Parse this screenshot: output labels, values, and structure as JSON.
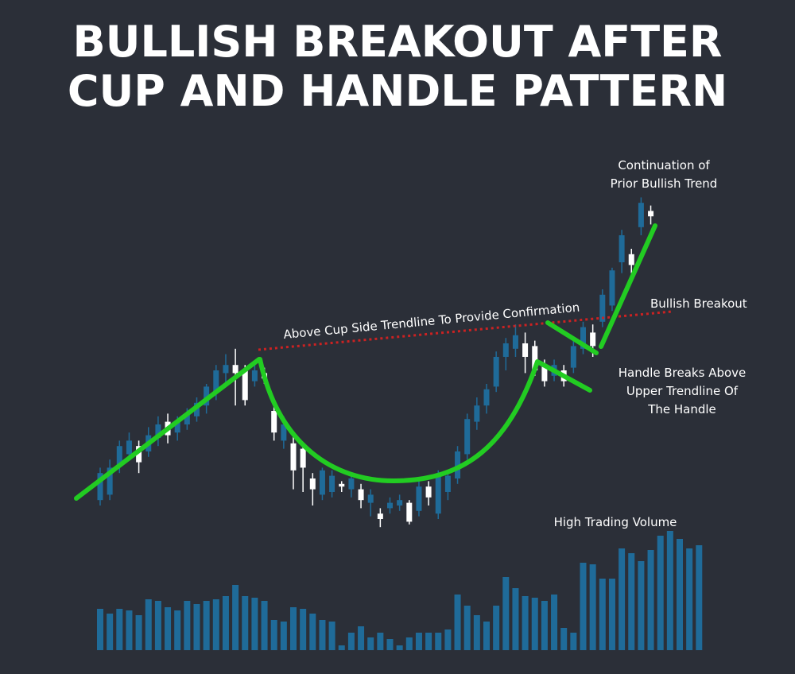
{
  "chart_data": {
    "type": "candlestick",
    "title": "BULLISH BREAKOUT AFTER CUP AND HANDLE PATTERN",
    "title_lines": [
      "BULLISH BREAKOUT AFTER",
      "CUP AND HANDLE PATTERN"
    ],
    "colors": {
      "background": "#2b2f38",
      "bull_candle": "#1f6b99",
      "bear_candle": "#ffffff",
      "volume": "#1f6b99",
      "pattern_line": "#22cc22",
      "breakout_line": "#cc2222",
      "text": "#ffffff"
    },
    "price_range": [
      0,
      100
    ],
    "volume_range": [
      0,
      100
    ],
    "candles": [
      {
        "o": 2,
        "c": 12,
        "h": 14,
        "l": 0,
        "bull": true
      },
      {
        "o": 4,
        "c": 14,
        "h": 17,
        "l": 2,
        "bull": true
      },
      {
        "o": 15,
        "c": 22,
        "h": 24,
        "l": 12,
        "bull": true
      },
      {
        "o": 19,
        "c": 24,
        "h": 27,
        "l": 17,
        "bull": true
      },
      {
        "o": 22,
        "c": 16,
        "h": 24,
        "l": 12,
        "bull": false
      },
      {
        "o": 20,
        "c": 26,
        "h": 29,
        "l": 18,
        "bull": true
      },
      {
        "o": 25,
        "c": 30,
        "h": 33,
        "l": 22,
        "bull": true
      },
      {
        "o": 31,
        "c": 26,
        "h": 34,
        "l": 23,
        "bull": false
      },
      {
        "o": 27,
        "c": 31,
        "h": 33,
        "l": 24,
        "bull": true
      },
      {
        "o": 30,
        "c": 34,
        "h": 36,
        "l": 28,
        "bull": true
      },
      {
        "o": 33,
        "c": 38,
        "h": 40,
        "l": 31,
        "bull": true
      },
      {
        "o": 37,
        "c": 44,
        "h": 45,
        "l": 34,
        "bull": true
      },
      {
        "o": 42,
        "c": 50,
        "h": 52,
        "l": 39,
        "bull": true
      },
      {
        "o": 49,
        "c": 52,
        "h": 56,
        "l": 45,
        "bull": true
      },
      {
        "o": 52,
        "c": 49,
        "h": 58,
        "l": 37,
        "bull": false
      },
      {
        "o": 50,
        "c": 39,
        "h": 52,
        "l": 37,
        "bull": false
      },
      {
        "o": 46,
        "c": 50,
        "h": 52,
        "l": 44,
        "bull": true
      },
      {
        "o": 49,
        "c": 47,
        "h": 51,
        "l": 45,
        "bull": false
      },
      {
        "o": 35,
        "c": 27,
        "h": 38,
        "l": 24,
        "bull": false
      },
      {
        "o": 24,
        "c": 30,
        "h": 33,
        "l": 21,
        "bull": true
      },
      {
        "o": 23,
        "c": 13,
        "h": 26,
        "l": 6,
        "bull": false
      },
      {
        "o": 21,
        "c": 14,
        "h": 22,
        "l": 5,
        "bull": false
      },
      {
        "o": 10,
        "c": 6,
        "h": 12,
        "l": 0,
        "bull": false
      },
      {
        "o": 4,
        "c": 13,
        "h": 14,
        "l": 2,
        "bull": true
      },
      {
        "o": 5,
        "c": 11,
        "h": 13,
        "l": 3,
        "bull": true
      },
      {
        "o": 8,
        "c": 7,
        "h": 9,
        "l": 5,
        "bull": false
      },
      {
        "o": 6,
        "c": 10,
        "h": 11,
        "l": 3,
        "bull": true
      },
      {
        "o": 6,
        "c": 2,
        "h": 8,
        "l": -1,
        "bull": false
      },
      {
        "o": 1,
        "c": 4,
        "h": 6,
        "l": -4,
        "bull": true
      },
      {
        "o": -3,
        "c": -5,
        "h": -1,
        "l": -8,
        "bull": false
      },
      {
        "o": -1,
        "c": 1,
        "h": 3,
        "l": -3,
        "bull": true
      },
      {
        "o": 0,
        "c": 2,
        "h": 4,
        "l": -2,
        "bull": true
      },
      {
        "o": 1,
        "c": -6,
        "h": 2,
        "l": -7,
        "bull": false
      },
      {
        "o": -2,
        "c": 7,
        "h": 10,
        "l": -4,
        "bull": true
      },
      {
        "o": 7,
        "c": 3,
        "h": 9,
        "l": 0,
        "bull": false
      },
      {
        "o": -3,
        "c": 11,
        "h": 13,
        "l": -5,
        "bull": true
      },
      {
        "o": 5,
        "c": 11,
        "h": 13,
        "l": 2,
        "bull": true
      },
      {
        "o": 10,
        "c": 20,
        "h": 22,
        "l": 8,
        "bull": true
      },
      {
        "o": 19,
        "c": 32,
        "h": 34,
        "l": 17,
        "bull": true
      },
      {
        "o": 31,
        "c": 37,
        "h": 40,
        "l": 28,
        "bull": true
      },
      {
        "o": 37,
        "c": 43,
        "h": 45,
        "l": 34,
        "bull": true
      },
      {
        "o": 44,
        "c": 55,
        "h": 57,
        "l": 42,
        "bull": true
      },
      {
        "o": 55,
        "c": 60,
        "h": 62,
        "l": 50,
        "bull": true
      },
      {
        "o": 58,
        "c": 63,
        "h": 67,
        "l": 55,
        "bull": true
      },
      {
        "o": 60,
        "c": 55,
        "h": 64,
        "l": 49,
        "bull": false
      },
      {
        "o": 59,
        "c": 50,
        "h": 61,
        "l": 48,
        "bull": false
      },
      {
        "o": 52,
        "c": 46,
        "h": 54,
        "l": 44,
        "bull": false
      },
      {
        "o": 48,
        "c": 52,
        "h": 54,
        "l": 46,
        "bull": true
      },
      {
        "o": 50,
        "c": 46,
        "h": 52,
        "l": 44,
        "bull": false
      },
      {
        "o": 51,
        "c": 59,
        "h": 62,
        "l": 49,
        "bull": true
      },
      {
        "o": 58,
        "c": 66,
        "h": 68,
        "l": 56,
        "bull": true
      },
      {
        "o": 64,
        "c": 59,
        "h": 67,
        "l": 55,
        "bull": false
      },
      {
        "o": 68,
        "c": 78,
        "h": 80,
        "l": 66,
        "bull": true
      },
      {
        "o": 74,
        "c": 87,
        "h": 88,
        "l": 72,
        "bull": true
      },
      {
        "o": 90,
        "c": 100,
        "h": 102,
        "l": 86,
        "bull": true
      },
      {
        "o": 93,
        "c": 89,
        "h": 95,
        "l": 86,
        "bull": false
      },
      {
        "o": 103,
        "c": 112,
        "h": 114,
        "l": 100,
        "bull": true
      },
      {
        "o": 109,
        "c": 107,
        "h": 111,
        "l": 104,
        "bull": false
      }
    ],
    "volume": [
      20,
      17,
      20,
      19,
      16,
      26,
      25,
      21,
      19,
      25,
      23,
      25,
      26,
      28,
      35,
      28,
      27,
      25,
      13,
      12,
      21,
      20,
      17,
      13,
      12,
      -3,
      5,
      9,
      2,
      5,
      1,
      -3,
      2,
      5,
      5,
      5,
      7,
      29,
      22,
      16,
      12,
      22,
      40,
      33,
      28,
      27,
      25,
      29,
      8,
      5,
      49,
      48,
      39,
      39,
      58,
      55,
      50,
      57,
      66,
      69,
      64,
      58,
      60
    ],
    "annotations": {
      "continuation": [
        "Continuation of",
        "Prior Bullish Trend"
      ],
      "breakout": "Bullish Breakout",
      "confirmation": "Above Cup Side Trendline To Provide Confirmation",
      "handle": [
        "Handle Breaks Above",
        "Upper Trendline Of",
        "The Handle"
      ],
      "volume": "High Trading Volume"
    }
  }
}
